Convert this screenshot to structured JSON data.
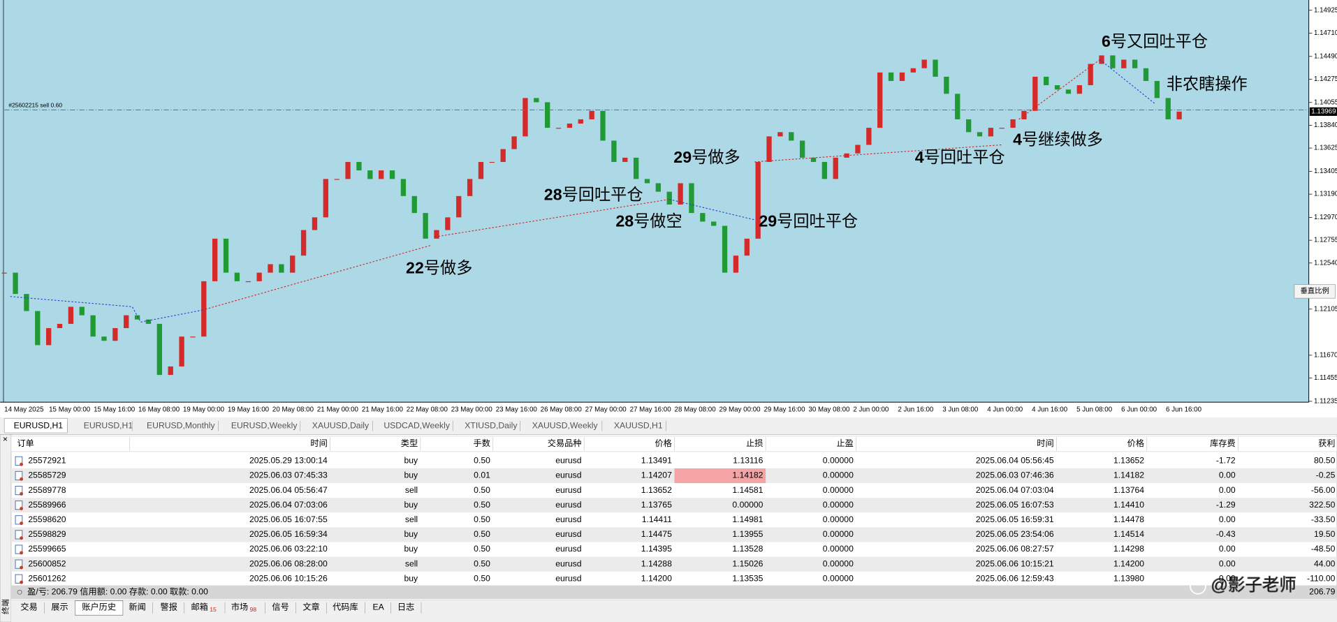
{
  "chart": {
    "type": "candlestick",
    "order_line_label": "#25602215 sell 0.60",
    "current_price": 1.13969,
    "ylim": [
      1.11227,
      1.15022
    ],
    "yticks": [
      1.14925,
      {
        "value": 1.1471,
        "label": "1.14710"
      },
      {
        "value": 1.1449,
        "label": "1.14490"
      },
      1.14275,
      1.14055,
      {
        "value": 1.1384,
        "label": "1.13840"
      },
      1.13625,
      1.13405,
      {
        "value": 1.1319,
        "label": "1.13190"
      },
      {
        "value": 1.1297,
        "label": "1.12970"
      },
      1.12755,
      {
        "value": 1.1254,
        "label": "1.12540"
      },
      1.12105,
      {
        "value": 1.1167,
        "label": "1.11670"
      },
      1.11455,
      1.11235
    ],
    "closes": [
      1.12449,
      1.12248,
      1.12087,
      1.11765,
      1.11926,
      1.11966,
      1.12127,
      1.12047,
      1.11846,
      1.11806,
      1.11926,
      1.12047,
      1.12007,
      1.11966,
      1.11484,
      1.11564,
      1.11846,
      1.11846,
      1.12368,
      1.1277,
      1.12449,
      1.12368,
      1.12368,
      1.12449,
      1.12529,
      1.12449,
      1.1261,
      1.12851,
      1.12971,
      1.13333,
      1.13333,
      1.13494,
      1.13414,
      1.13333,
      1.13414,
      1.13333,
      1.13172,
      1.13012,
      1.1277,
      1.12851,
      1.12971,
      1.13172,
      1.13333,
      1.13494,
      1.13494,
      1.13615,
      1.13735,
      1.14097,
      1.14057,
      1.13816,
      1.13816,
      1.13856,
      1.13896,
      1.13976,
      1.13695,
      1.13494,
      1.13534,
      1.13333,
      1.13293,
      1.13213,
      1.13092,
      1.13293,
      1.13012,
      1.12931,
      1.12891,
      1.12449,
      1.1261,
      1.1277,
      1.13494,
      1.13735,
      1.13775,
      1.13695,
      1.13534,
      1.13494,
      1.13333,
      1.13534,
      1.13574,
      1.13655,
      1.13816,
      1.14338,
      1.14258,
      1.14338,
      1.14378,
      1.14459,
      1.14298,
      1.14137,
      1.13896,
      1.13775,
      1.13735,
      1.13816,
      1.13816,
      1.13896,
      1.13976,
      1.14298,
      1.14218,
      1.14177,
      1.14137,
      1.14218,
      1.14419,
      1.14499,
      1.14378,
      1.14459,
      1.14378,
      1.14258,
      1.14097,
      1.13896,
      1.13969
    ],
    "up_color": "#d42a2a",
    "down_color": "#1f9a35",
    "background": "#add8e6",
    "xtick_labels": [
      "14 May 2025",
      "15 May 00:00",
      "15 May 16:00",
      "16 May 08:00",
      "19 May 00:00",
      "19 May 16:00",
      "20 May 08:00",
      "21 May 00:00",
      "21 May 16:00",
      "22 May 08:00",
      "23 May 00:00",
      "23 May 16:00",
      "26 May 08:00",
      "27 May 00:00",
      "27 May 16:00",
      "28 May 08:00",
      "29 May 00:00",
      "29 May 16:00",
      "30 May 08:00",
      "2 Jun 00:00",
      "2 Jun 16:00",
      "3 Jun 08:00",
      "4 Jun 00:00",
      "4 Jun 16:00",
      "5 Jun 08:00",
      "6 Jun 00:00",
      "6 Jun 16:00"
    ],
    "scale_button": "垂直比例",
    "annotations": [
      {
        "num": "22",
        "text": "号做多"
      },
      {
        "num": "28",
        "text": "号回吐平仓"
      },
      {
        "num": "28",
        "text": "号做空"
      },
      {
        "num": "29",
        "text": "号做多"
      },
      {
        "num": "29",
        "text": "号回吐平仓"
      },
      {
        "num": "4",
        "text": "号回吐平仓"
      },
      {
        "num": "4",
        "text": "号继续做多"
      },
      {
        "num": "6",
        "text": "号又回吐平仓"
      },
      {
        "text": "非农瞎操作"
      }
    ]
  },
  "chart_tabs": {
    "items": [
      "EURUSD,H1",
      "EURUSD,H1",
      "EURUSD,Monthly",
      "EURUSD,Weekly",
      "XAUUSD,Daily",
      "USDCAD,Weekly",
      "XTIUSD,Daily",
      "XAUUSD,Weekly",
      "XAUUSD,H1"
    ],
    "active": 0
  },
  "terminal": {
    "side_title": "终端",
    "columns": [
      "订单",
      "时间",
      "类型",
      "手数",
      "交易品种",
      "价格",
      "止损",
      "止盈",
      "时间",
      "价格",
      "库存费",
      "获利"
    ],
    "rows": [
      [
        "25572921",
        "2025.05.29 13:00:14",
        "buy",
        "0.50",
        "eurusd",
        "1.13491",
        "1.13116",
        "0.00000",
        "2025.06.04 05:56:45",
        "1.13652",
        "-1.72",
        "80.50"
      ],
      [
        "25585729",
        "2025.06.03 07:45:33",
        "buy",
        "0.01",
        "eurusd",
        "1.14207",
        "1.14182",
        "0.00000",
        "2025.06.03 07:46:36",
        "1.14182",
        "0.00",
        "-0.25"
      ],
      [
        "25589778",
        "2025.06.04 05:56:47",
        "sell",
        "0.50",
        "eurusd",
        "1.13652",
        "1.14581",
        "0.00000",
        "2025.06.04 07:03:04",
        "1.13764",
        "0.00",
        "-56.00"
      ],
      [
        "25589966",
        "2025.06.04 07:03:06",
        "buy",
        "0.50",
        "eurusd",
        "1.13765",
        "0.00000",
        "0.00000",
        "2025.06.05 16:07:53",
        "1.14410",
        "-1.29",
        "322.50"
      ],
      [
        "25598620",
        "2025.06.05 16:07:55",
        "sell",
        "0.50",
        "eurusd",
        "1.14411",
        "1.14981",
        "0.00000",
        "2025.06.05 16:59:31",
        "1.14478",
        "0.00",
        "-33.50"
      ],
      [
        "25598829",
        "2025.06.05 16:59:34",
        "buy",
        "0.50",
        "eurusd",
        "1.14475",
        "1.13955",
        "0.00000",
        "2025.06.05 23:54:06",
        "1.14514",
        "-0.43",
        "19.50"
      ],
      [
        "25599665",
        "2025.06.06 03:22:10",
        "buy",
        "0.50",
        "eurusd",
        "1.14395",
        "1.13528",
        "0.00000",
        "2025.06.06 08:27:57",
        "1.14298",
        "0.00",
        "-48.50"
      ],
      [
        "25600852",
        "2025.06.06 08:28:00",
        "sell",
        "0.50",
        "eurusd",
        "1.14288",
        "1.15026",
        "0.00000",
        "2025.06.06 10:15:21",
        "1.14200",
        "0.00",
        "44.00"
      ],
      [
        "25601262",
        "2025.06.06 10:15:26",
        "buy",
        "0.50",
        "eurusd",
        "1.14200",
        "1.13535",
        "0.00000",
        "2025.06.06 12:59:43",
        "1.13980",
        "0.00",
        "-110.00"
      ]
    ],
    "summary": "盈/亏: 206.79 信用额: 0.00 存款: 0.00 取款: 0.00",
    "total": "206.79",
    "tabs": [
      {
        "label": "交易"
      },
      {
        "label": "展示"
      },
      {
        "label": "账户历史"
      },
      {
        "label": "新闻"
      },
      {
        "label": "警报"
      },
      {
        "label": "邮箱",
        "badge": "15"
      },
      {
        "label": "市场",
        "badge": "98"
      },
      {
        "label": "信号"
      },
      {
        "label": "文章"
      },
      {
        "label": "代码库"
      },
      {
        "label": "EA"
      },
      {
        "label": "日志"
      }
    ],
    "active_tab": 2
  },
  "watermark": "@影子老师"
}
